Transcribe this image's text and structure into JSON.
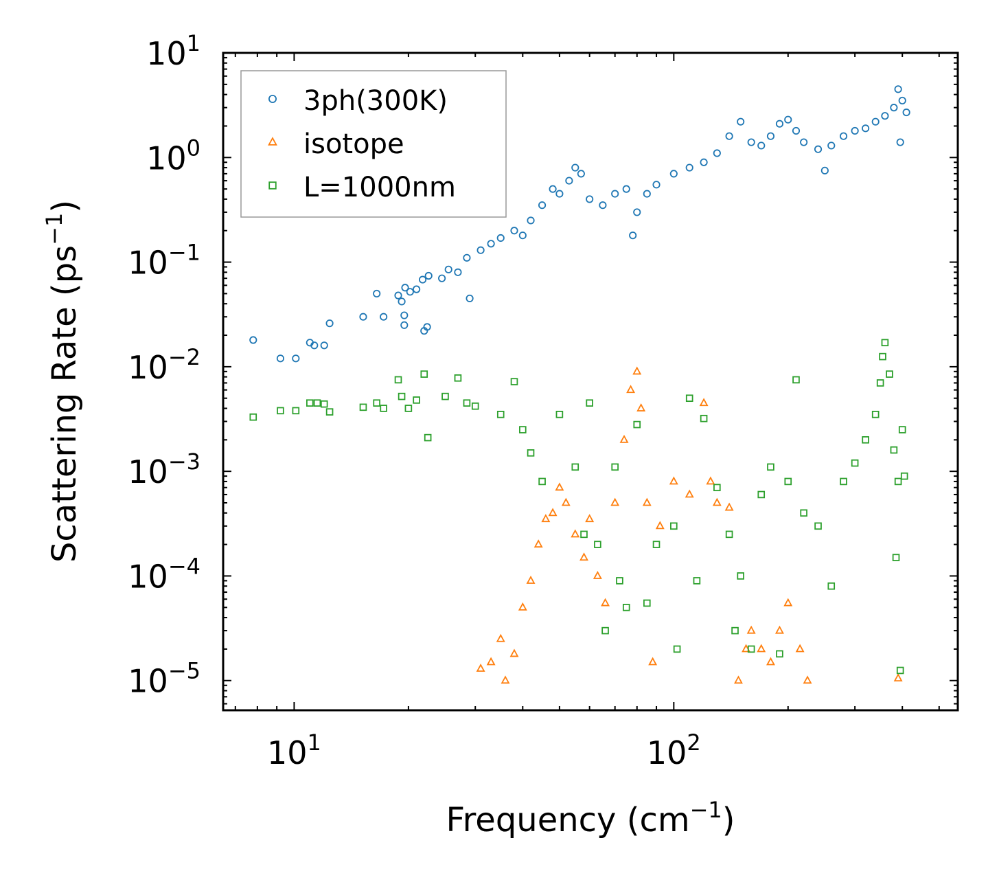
{
  "chart_data": {
    "type": "scatter",
    "title": "",
    "xlabel": "Frequency (cm",
    "xlabel_sup": "−1",
    "xlabel_end": ")",
    "ylabel": "Scattering Rate (ps",
    "ylabel_sup": "−1",
    "ylabel_end": ")",
    "xscale": "log",
    "yscale": "log",
    "xlim": [
      6.5,
      560
    ],
    "ylim": [
      5.2e-06,
      10
    ],
    "legend_position": "top-left",
    "x_ticks": [
      {
        "value": 10,
        "base": "10",
        "exp": "1"
      },
      {
        "value": 100,
        "base": "10",
        "exp": "2"
      }
    ],
    "y_ticks": [
      {
        "value": 10,
        "base": "10",
        "exp": "1"
      },
      {
        "value": 1,
        "base": "10",
        "exp": "0"
      },
      {
        "value": 0.1,
        "base": "10",
        "exp": "−1"
      },
      {
        "value": 0.01,
        "base": "10",
        "exp": "−2"
      },
      {
        "value": 0.001,
        "base": "10",
        "exp": "−3"
      },
      {
        "value": 0.0001,
        "base": "10",
        "exp": "−4"
      },
      {
        "value": 1e-05,
        "base": "10",
        "exp": "−5"
      }
    ],
    "series": [
      {
        "name": "3ph(300K)",
        "marker": "circle",
        "color": "#1f77b4",
        "points": [
          [
            7.8,
            0.018
          ],
          [
            9.2,
            0.012
          ],
          [
            10.1,
            0.012
          ],
          [
            11.0,
            0.017
          ],
          [
            11.3,
            0.016
          ],
          [
            12.0,
            0.016
          ],
          [
            12.4,
            0.026
          ],
          [
            15.2,
            0.03
          ],
          [
            16.5,
            0.05
          ],
          [
            17.2,
            0.03
          ],
          [
            18.8,
            0.048
          ],
          [
            19.2,
            0.042
          ],
          [
            19.5,
            0.025
          ],
          [
            19.5,
            0.031
          ],
          [
            19.6,
            0.057
          ],
          [
            20.2,
            0.052
          ],
          [
            21.0,
            0.055
          ],
          [
            21.8,
            0.068
          ],
          [
            22.0,
            0.022
          ],
          [
            22.4,
            0.024
          ],
          [
            22.6,
            0.074
          ],
          [
            24.5,
            0.07
          ],
          [
            25.5,
            0.085
          ],
          [
            27.0,
            0.08
          ],
          [
            28.5,
            0.11
          ],
          [
            29.0,
            0.045
          ],
          [
            31.0,
            0.13
          ],
          [
            33.0,
            0.15
          ],
          [
            35.0,
            0.17
          ],
          [
            38.0,
            0.2
          ],
          [
            40.0,
            0.18
          ],
          [
            42.0,
            0.25
          ],
          [
            45.0,
            0.35
          ],
          [
            48.0,
            0.5
          ],
          [
            50.0,
            0.45
          ],
          [
            53.0,
            0.6
          ],
          [
            55.0,
            0.8
          ],
          [
            57.0,
            0.7
          ],
          [
            60.0,
            0.4
          ],
          [
            65.0,
            0.35
          ],
          [
            70.0,
            0.45
          ],
          [
            75.0,
            0.5
          ],
          [
            78.0,
            0.18
          ],
          [
            80.0,
            0.3
          ],
          [
            85.0,
            0.45
          ],
          [
            90.0,
            0.55
          ],
          [
            100.0,
            0.7
          ],
          [
            110.0,
            0.8
          ],
          [
            120.0,
            0.9
          ],
          [
            130.0,
            1.1
          ],
          [
            140.0,
            1.6
          ],
          [
            150.0,
            2.2
          ],
          [
            160.0,
            1.4
          ],
          [
            170.0,
            1.3
          ],
          [
            180.0,
            1.6
          ],
          [
            190.0,
            2.1
          ],
          [
            200.0,
            2.3
          ],
          [
            210.0,
            1.8
          ],
          [
            220.0,
            1.4
          ],
          [
            240.0,
            1.2
          ],
          [
            250.0,
            0.75
          ],
          [
            260.0,
            1.3
          ],
          [
            280.0,
            1.6
          ],
          [
            300.0,
            1.8
          ],
          [
            320.0,
            1.9
          ],
          [
            340.0,
            2.2
          ],
          [
            360.0,
            2.5
          ],
          [
            380.0,
            3.0
          ],
          [
            390.0,
            4.5
          ],
          [
            395.0,
            1.4
          ],
          [
            400.0,
            3.5
          ],
          [
            410.0,
            2.7
          ]
        ]
      },
      {
        "name": "isotope",
        "marker": "triangle",
        "color": "#ff7f0e",
        "points": [
          [
            31.0,
            1.3e-05
          ],
          [
            33.0,
            1.5e-05
          ],
          [
            35.0,
            2.5e-05
          ],
          [
            36.0,
            1e-05
          ],
          [
            38.0,
            1.8e-05
          ],
          [
            40.0,
            5e-05
          ],
          [
            42.0,
            9e-05
          ],
          [
            44.0,
            0.0002
          ],
          [
            46.0,
            0.00035
          ],
          [
            48.0,
            0.0004
          ],
          [
            50.0,
            0.0007
          ],
          [
            52.0,
            0.0005
          ],
          [
            55.0,
            0.00025
          ],
          [
            58.0,
            0.00015
          ],
          [
            60.0,
            0.00035
          ],
          [
            63.0,
            0.0001
          ],
          [
            66.0,
            5.5e-05
          ],
          [
            70.0,
            0.0005
          ],
          [
            74.0,
            0.002
          ],
          [
            77.0,
            0.006
          ],
          [
            80.0,
            0.009
          ],
          [
            82.0,
            0.004
          ],
          [
            85.0,
            0.0005
          ],
          [
            88.0,
            1.5e-05
          ],
          [
            92.0,
            0.0003
          ],
          [
            100.0,
            0.0008
          ],
          [
            110.0,
            0.0006
          ],
          [
            120.0,
            0.0045
          ],
          [
            125.0,
            0.0008
          ],
          [
            130.0,
            0.0005
          ],
          [
            140.0,
            0.00045
          ],
          [
            148.0,
            1e-05
          ],
          [
            155.0,
            2e-05
          ],
          [
            160.0,
            3e-05
          ],
          [
            170.0,
            2e-05
          ],
          [
            180.0,
            1.5e-05
          ],
          [
            190.0,
            3e-05
          ],
          [
            200.0,
            5.5e-05
          ],
          [
            215.0,
            2e-05
          ],
          [
            225.0,
            1e-05
          ],
          [
            390.0,
            1.05e-05
          ]
        ]
      },
      {
        "name": "L=1000nm",
        "marker": "square",
        "color": "#2ca02c",
        "points": [
          [
            7.8,
            0.0033
          ],
          [
            9.2,
            0.0038
          ],
          [
            10.1,
            0.0038
          ],
          [
            11.0,
            0.0045
          ],
          [
            11.5,
            0.0045
          ],
          [
            12.0,
            0.0044
          ],
          [
            12.4,
            0.0037
          ],
          [
            15.2,
            0.0041
          ],
          [
            16.5,
            0.0045
          ],
          [
            17.2,
            0.004
          ],
          [
            18.8,
            0.0075
          ],
          [
            19.2,
            0.0052
          ],
          [
            20.0,
            0.004
          ],
          [
            21.0,
            0.0048
          ],
          [
            22.0,
            0.0085
          ],
          [
            22.5,
            0.0021
          ],
          [
            25.0,
            0.0052
          ],
          [
            27.0,
            0.0078
          ],
          [
            28.5,
            0.0045
          ],
          [
            30.0,
            0.0042
          ],
          [
            35.0,
            0.0035
          ],
          [
            38.0,
            0.0072
          ],
          [
            40.0,
            0.0025
          ],
          [
            42.0,
            0.0015
          ],
          [
            45.0,
            0.0008
          ],
          [
            50.0,
            0.0035
          ],
          [
            55.0,
            0.0011
          ],
          [
            58.0,
            0.00025
          ],
          [
            60.0,
            0.0045
          ],
          [
            63.0,
            0.0002
          ],
          [
            66.0,
            3e-05
          ],
          [
            70.0,
            0.0011
          ],
          [
            72.0,
            9e-05
          ],
          [
            75.0,
            5e-05
          ],
          [
            80.0,
            0.0028
          ],
          [
            85.0,
            5.5e-05
          ],
          [
            90.0,
            0.0002
          ],
          [
            100.0,
            0.0003
          ],
          [
            102.0,
            2e-05
          ],
          [
            110.0,
            0.005
          ],
          [
            115.0,
            9e-05
          ],
          [
            120.0,
            0.0032
          ],
          [
            130.0,
            0.0007
          ],
          [
            140.0,
            0.00025
          ],
          [
            145.0,
            3e-05
          ],
          [
            150.0,
            0.0001
          ],
          [
            160.0,
            2e-05
          ],
          [
            170.0,
            0.0006
          ],
          [
            180.0,
            0.0011
          ],
          [
            190.0,
            1.8e-05
          ],
          [
            200.0,
            0.0008
          ],
          [
            210.0,
            0.0075
          ],
          [
            220.0,
            0.0004
          ],
          [
            240.0,
            0.0003
          ],
          [
            260.0,
            8e-05
          ],
          [
            280.0,
            0.0008
          ],
          [
            300.0,
            0.0012
          ],
          [
            320.0,
            0.002
          ],
          [
            340.0,
            0.0035
          ],
          [
            350.0,
            0.007
          ],
          [
            355.0,
            0.0125
          ],
          [
            360.0,
            0.017
          ],
          [
            370.0,
            0.0085
          ],
          [
            380.0,
            0.0016
          ],
          [
            385.0,
            0.00015
          ],
          [
            390.0,
            0.0008
          ],
          [
            395.0,
            1.25e-05
          ],
          [
            400.0,
            0.0025
          ],
          [
            405.0,
            0.0009
          ]
        ]
      }
    ]
  }
}
